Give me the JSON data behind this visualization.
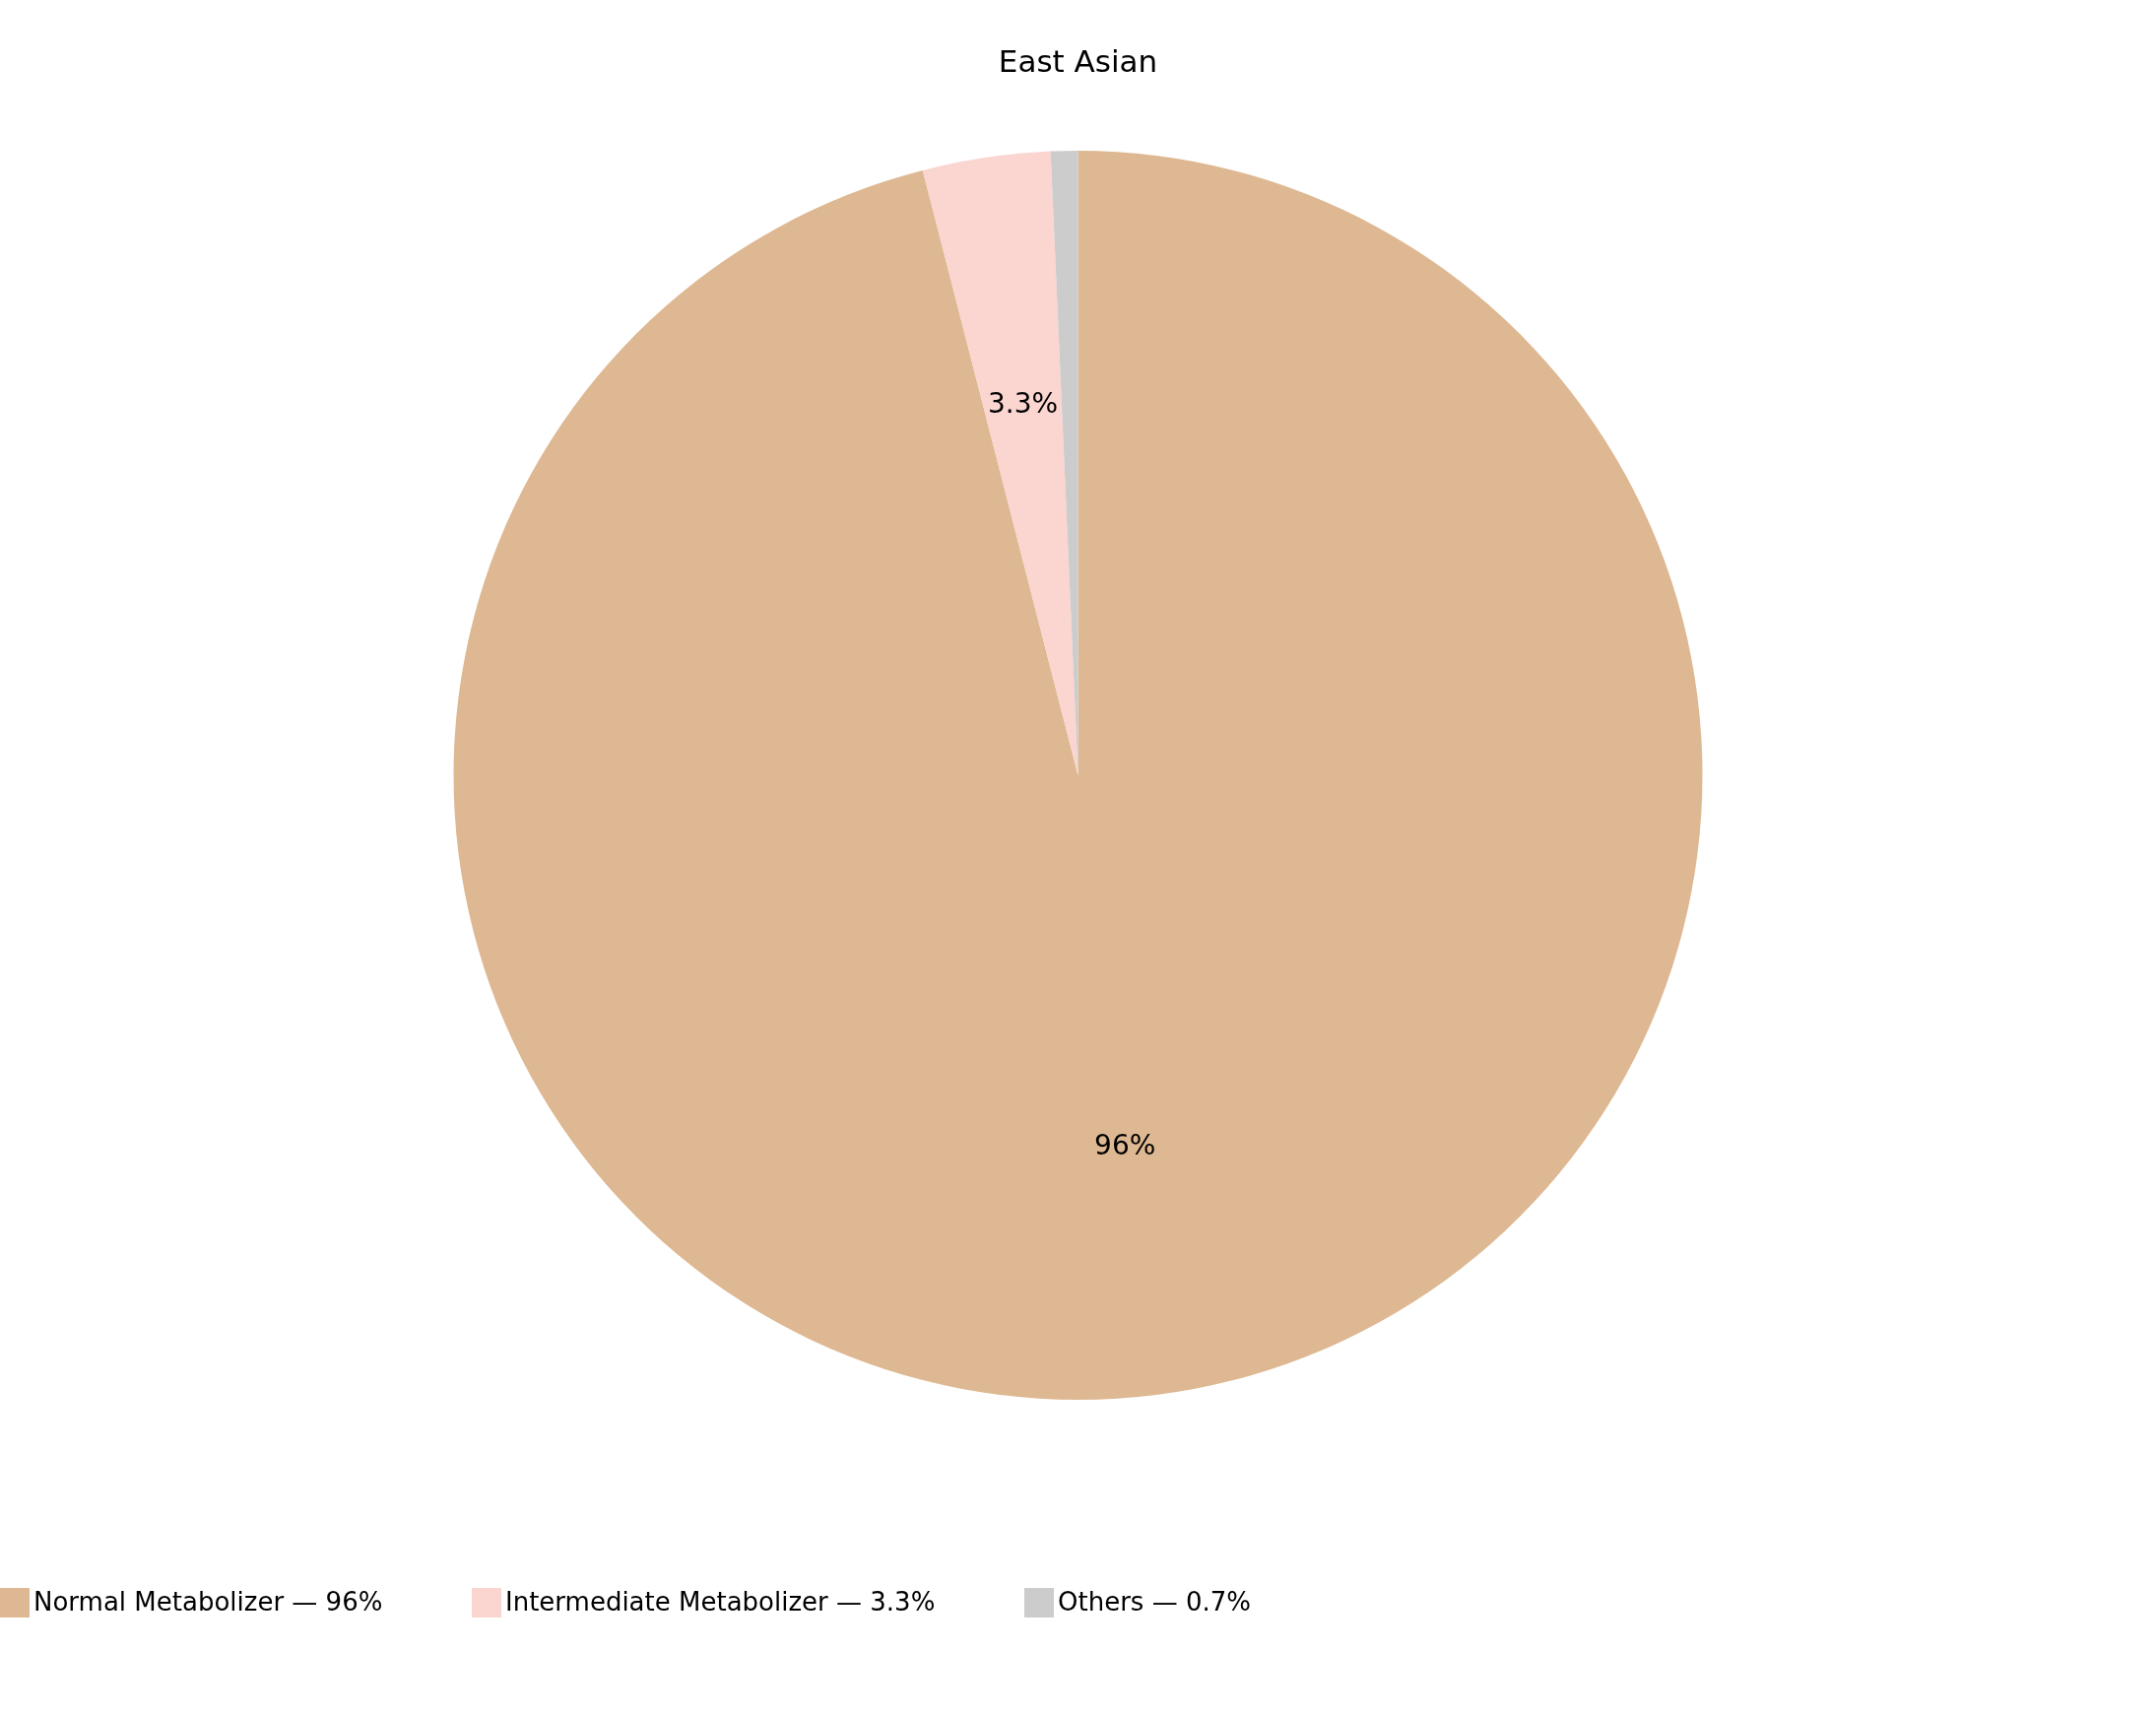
{
  "chart_data": {
    "type": "pie",
    "title": "East Asian",
    "categories": [
      "Normal Metabolizer — 96%",
      "Intermediate Metabolizer — 3.3%",
      "Others — 0.7%"
    ],
    "values": [
      96,
      3.3,
      0.7
    ],
    "colors": [
      "#deb892",
      "#fbd5cf",
      "#cccccc"
    ],
    "value_labels": [
      "96%",
      "3.3%",
      null
    ],
    "legend": "bottom"
  }
}
